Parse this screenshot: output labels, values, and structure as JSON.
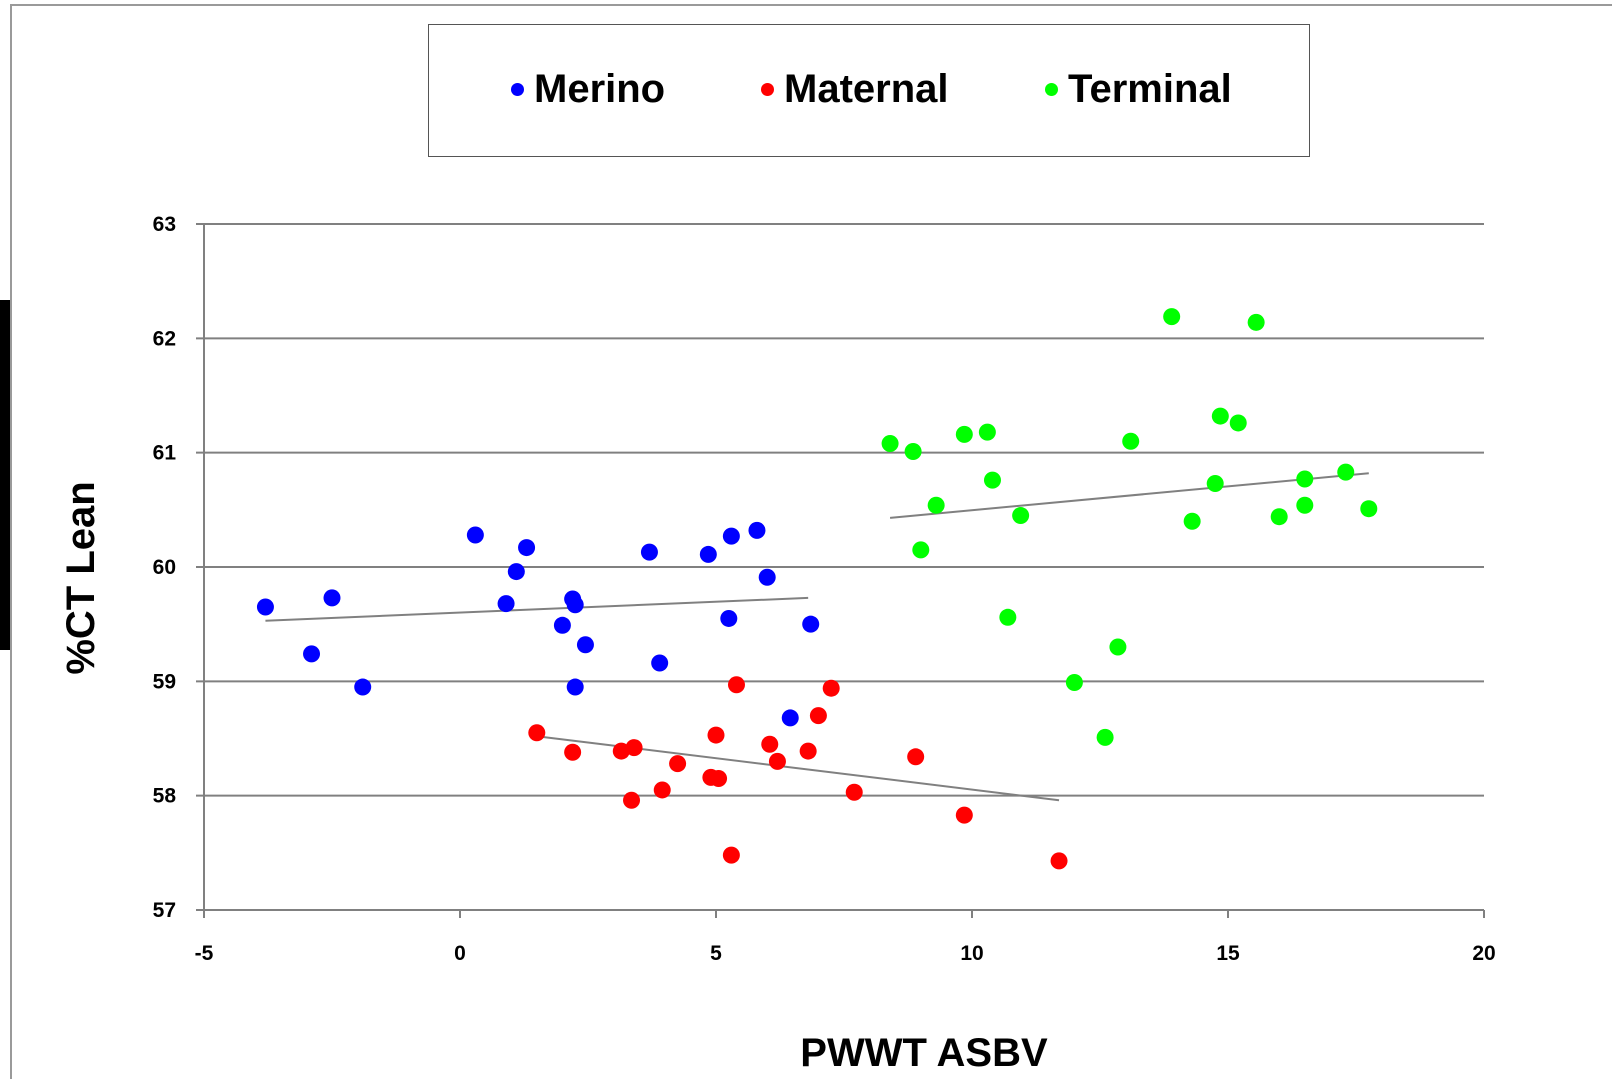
{
  "chart_data": {
    "type": "scatter",
    "title": "",
    "xlabel": "PWWT ASBV",
    "ylabel": "%CT Lean",
    "xlim": [
      -5,
      20
    ],
    "ylim": [
      57,
      63
    ],
    "xticks": [
      "-5",
      "0",
      "5",
      "10",
      "15",
      "20"
    ],
    "yticks": [
      "57",
      "58",
      "59",
      "60",
      "61",
      "62",
      "63"
    ],
    "grid": "horizontal",
    "legend_position": "top",
    "series": [
      {
        "name": "Merino",
        "color": "#0000ff",
        "points": [
          [
            -3.8,
            59.65
          ],
          [
            -2.9,
            59.24
          ],
          [
            -2.5,
            59.73
          ],
          [
            -1.9,
            58.95
          ],
          [
            0.3,
            60.28
          ],
          [
            0.9,
            59.68
          ],
          [
            1.1,
            59.96
          ],
          [
            1.3,
            60.17
          ],
          [
            2.0,
            59.49
          ],
          [
            2.2,
            59.72
          ],
          [
            2.25,
            59.67
          ],
          [
            2.25,
            58.95
          ],
          [
            2.45,
            59.32
          ],
          [
            3.7,
            60.13
          ],
          [
            3.9,
            59.16
          ],
          [
            4.85,
            60.11
          ],
          [
            5.25,
            59.55
          ],
          [
            5.3,
            60.27
          ],
          [
            5.8,
            60.32
          ],
          [
            6.0,
            59.91
          ],
          [
            6.45,
            58.68
          ],
          [
            6.85,
            59.5
          ]
        ],
        "trend": [
          [
            -3.8,
            59.53
          ],
          [
            6.8,
            59.73
          ]
        ]
      },
      {
        "name": "Maternal",
        "color": "#ff0000",
        "points": [
          [
            1.5,
            58.55
          ],
          [
            2.2,
            58.38
          ],
          [
            3.15,
            58.39
          ],
          [
            3.4,
            58.42
          ],
          [
            3.35,
            57.96
          ],
          [
            3.95,
            58.05
          ],
          [
            4.25,
            58.28
          ],
          [
            4.9,
            58.16
          ],
          [
            5.0,
            58.53
          ],
          [
            5.05,
            58.15
          ],
          [
            5.3,
            57.48
          ],
          [
            5.4,
            58.97
          ],
          [
            6.05,
            58.45
          ],
          [
            6.2,
            58.3
          ],
          [
            6.8,
            58.39
          ],
          [
            7.0,
            58.7
          ],
          [
            7.25,
            58.94
          ],
          [
            7.7,
            58.03
          ],
          [
            8.9,
            58.34
          ],
          [
            9.85,
            57.83
          ],
          [
            11.7,
            57.43
          ]
        ],
        "trend": [
          [
            1.5,
            58.52
          ],
          [
            11.7,
            57.96
          ]
        ]
      },
      {
        "name": "Terminal",
        "color": "#00ff00",
        "points": [
          [
            8.4,
            61.08
          ],
          [
            8.85,
            61.01
          ],
          [
            9.0,
            60.15
          ],
          [
            9.3,
            60.54
          ],
          [
            9.85,
            61.16
          ],
          [
            10.3,
            61.18
          ],
          [
            10.4,
            60.76
          ],
          [
            10.7,
            59.56
          ],
          [
            10.95,
            60.45
          ],
          [
            12.0,
            58.99
          ],
          [
            12.6,
            58.51
          ],
          [
            12.85,
            59.3
          ],
          [
            13.1,
            61.1
          ],
          [
            13.9,
            62.19
          ],
          [
            14.3,
            60.4
          ],
          [
            14.75,
            60.73
          ],
          [
            14.85,
            61.32
          ],
          [
            15.2,
            61.26
          ],
          [
            15.55,
            62.14
          ],
          [
            16.0,
            60.44
          ],
          [
            16.5,
            60.77
          ],
          [
            16.5,
            60.54
          ],
          [
            17.3,
            60.83
          ],
          [
            17.75,
            60.51
          ]
        ],
        "trend": [
          [
            8.4,
            60.43
          ],
          [
            17.75,
            60.82
          ]
        ]
      }
    ]
  }
}
